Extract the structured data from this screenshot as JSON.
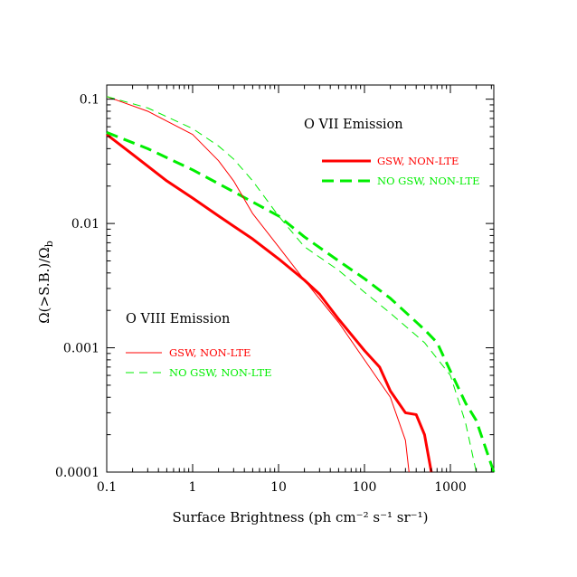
{
  "chart_data": {
    "type": "line",
    "title": "",
    "xlabel": "Surface Brightness (ph cm⁻² s⁻¹ sr⁻¹)",
    "ylabel": "Ω(>S.B.)/Ω",
    "ylabel_subscript": "b",
    "x_scale": "log",
    "y_scale": "log",
    "xlim": [
      0.1,
      3200
    ],
    "ylim": [
      0.0001,
      0.13
    ],
    "x_ticks": [
      {
        "value": 0.1,
        "label": "0.1"
      },
      {
        "value": 1,
        "label": "1"
      },
      {
        "value": 10,
        "label": "10"
      },
      {
        "value": 100,
        "label": "100"
      },
      {
        "value": 1000,
        "label": "1000"
      }
    ],
    "y_ticks": [
      {
        "value": 0.0001,
        "label": "0.0001"
      },
      {
        "value": 0.001,
        "label": "0.001"
      },
      {
        "value": 0.01,
        "label": "0.01"
      },
      {
        "value": 0.1,
        "label": "0.1"
      }
    ],
    "grid": false,
    "colors": {
      "red": "#ff0000",
      "green": "#00ee00"
    },
    "annotations": [
      {
        "text": "O VII Emission",
        "position": "upper-right"
      },
      {
        "text": "O VIII Emission",
        "position": "middle-left"
      }
    ],
    "legends": [
      {
        "group": "O VII Emission",
        "entries": [
          {
            "label": "GSW, NON-LTE",
            "color": "#ff0000",
            "style": "solid-thick"
          },
          {
            "label": "NO GSW, NON-LTE",
            "color": "#00ee00",
            "style": "dashed-thick"
          }
        ]
      },
      {
        "group": "O VIII Emission",
        "entries": [
          {
            "label": "GSW, NON-LTE",
            "color": "#ff0000",
            "style": "solid-thin"
          },
          {
            "label": "NO GSW, NON-LTE",
            "color": "#00ee00",
            "style": "dashed-thin"
          }
        ]
      }
    ],
    "series": [
      {
        "group": "O VII Emission",
        "legend_label": "GSW, NON-LTE",
        "color": "#ff0000",
        "style": "solid-thick",
        "points": [
          [
            0.1,
            0.052
          ],
          [
            0.2,
            0.036
          ],
          [
            0.5,
            0.022
          ],
          [
            1,
            0.016
          ],
          [
            2,
            0.0115
          ],
          [
            5,
            0.0075
          ],
          [
            10,
            0.0052
          ],
          [
            20,
            0.0035
          ],
          [
            30,
            0.0027
          ],
          [
            50,
            0.0017
          ],
          [
            100,
            0.00095
          ],
          [
            150,
            0.0007
          ],
          [
            200,
            0.00045
          ],
          [
            300,
            0.0003
          ],
          [
            400,
            0.00029
          ],
          [
            500,
            0.0002
          ],
          [
            600,
            0.0001
          ]
        ]
      },
      {
        "group": "O VII Emission",
        "legend_label": "NO GSW, NON-LTE",
        "color": "#00ee00",
        "style": "dashed-thick",
        "points": [
          [
            0.1,
            0.054
          ],
          [
            0.3,
            0.04
          ],
          [
            1,
            0.027
          ],
          [
            3,
            0.018
          ],
          [
            10,
            0.0115
          ],
          [
            20,
            0.0078
          ],
          [
            50,
            0.005
          ],
          [
            100,
            0.0036
          ],
          [
            200,
            0.0025
          ],
          [
            500,
            0.0014
          ],
          [
            700,
            0.0011
          ],
          [
            1000,
            0.00065
          ],
          [
            1500,
            0.00036
          ],
          [
            2000,
            0.00026
          ],
          [
            3200,
            0.0001
          ]
        ]
      },
      {
        "group": "O VIII Emission",
        "legend_label": "GSW, NON-LTE",
        "color": "#ff0000",
        "style": "solid-thin",
        "points": [
          [
            0.1,
            0.105
          ],
          [
            0.3,
            0.08
          ],
          [
            1,
            0.052
          ],
          [
            2,
            0.032
          ],
          [
            3,
            0.022
          ],
          [
            5,
            0.012
          ],
          [
            10,
            0.0065
          ],
          [
            20,
            0.0035
          ],
          [
            50,
            0.0016
          ],
          [
            100,
            0.0008
          ],
          [
            200,
            0.0004
          ],
          [
            300,
            0.00018
          ],
          [
            330,
            0.0001
          ]
        ]
      },
      {
        "group": "O VIII Emission",
        "legend_label": "NO GSW, NON-LTE",
        "color": "#00ee00",
        "style": "dashed-thin",
        "points": [
          [
            0.1,
            0.105
          ],
          [
            0.3,
            0.085
          ],
          [
            1,
            0.058
          ],
          [
            2,
            0.042
          ],
          [
            3,
            0.033
          ],
          [
            5,
            0.022
          ],
          [
            10,
            0.0115
          ],
          [
            20,
            0.0065
          ],
          [
            50,
            0.0042
          ],
          [
            100,
            0.0028
          ],
          [
            200,
            0.0019
          ],
          [
            500,
            0.0011
          ],
          [
            1000,
            0.0006
          ],
          [
            1500,
            0.00025
          ],
          [
            2000,
            0.0001
          ]
        ]
      }
    ]
  }
}
